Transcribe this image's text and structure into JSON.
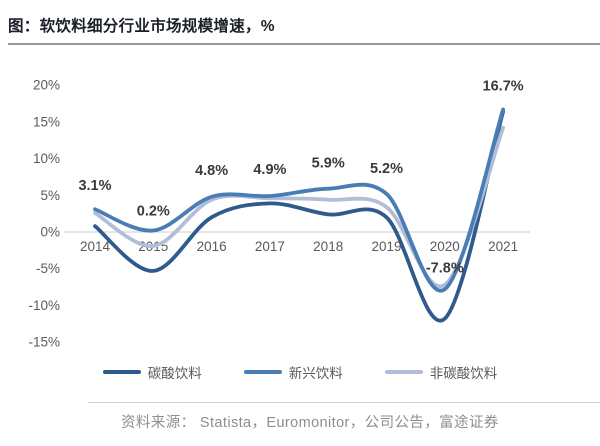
{
  "header": {
    "title": "图：软饮料细分行业市场规模增速，%"
  },
  "chart_data": {
    "type": "line",
    "title": "软饮料细分行业市场规模增速，%",
    "categories": [
      "2014",
      "2015",
      "2016",
      "2017",
      "2018",
      "2019",
      "2020",
      "2021"
    ],
    "y_tick_labels": [
      "20%",
      "15%",
      "10%",
      "5%",
      "0%",
      "-5%",
      "-10%",
      "-15%"
    ],
    "y_tick_values": [
      20,
      15,
      10,
      5,
      0,
      -5,
      -10,
      -15
    ],
    "ylim": [
      -15,
      20
    ],
    "grid": "zero-line-only",
    "legend_position": "bottom",
    "series": [
      {
        "name": "碳酸饮料",
        "color": "#2f5a8c",
        "values": [
          0.8,
          -5.3,
          2.0,
          3.9,
          2.4,
          2.0,
          -11.8,
          16.4
        ]
      },
      {
        "name": "非碳酸饮料",
        "color": "#b1bed8",
        "values": [
          2.6,
          -1.9,
          4.4,
          4.6,
          4.4,
          3.4,
          -7.2,
          14.2
        ]
      },
      {
        "name": "新兴饮料",
        "color": "#4a7db3",
        "values": [
          3.1,
          0.2,
          4.8,
          4.9,
          5.9,
          5.2,
          -7.8,
          16.7
        ]
      }
    ],
    "point_labels": {
      "series": "新兴饮料",
      "labels": [
        "3.1%",
        "0.2%",
        "4.8%",
        "4.9%",
        "5.9%",
        "5.2%",
        "-7.8%",
        "16.7%"
      ]
    }
  },
  "legend": {
    "items": [
      {
        "label": "碳酸饮料",
        "color": "#2f5a8c"
      },
      {
        "label": "新兴饮料",
        "color": "#4a7db3"
      },
      {
        "label": "非碳酸饮料",
        "color": "#b1bed8"
      }
    ]
  },
  "footer": {
    "source": "资料来源： Statista，Euromonitor，公司公告，富途证券"
  }
}
